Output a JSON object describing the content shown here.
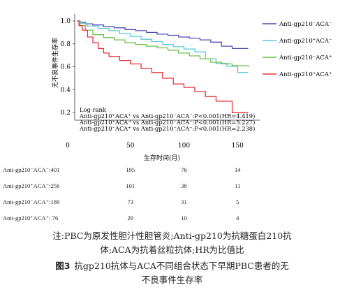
{
  "chart_data": {
    "type": "line",
    "ylabel": "无不良事件生存率",
    "xlabel": "生存时间(月)",
    "x_ticks": [
      0,
      50,
      100,
      150
    ],
    "y_ticks": [
      "0.2",
      "0.4",
      "0.6",
      "0.8",
      "1.0"
    ],
    "xlim": [
      0,
      165
    ],
    "ylim": [
      0.15,
      1.02
    ],
    "legend_position": "right",
    "series": [
      {
        "name": "Anti-gp210⁻ACA⁻",
        "color": "#4b4fb5",
        "points": [
          [
            0,
            1.0
          ],
          [
            3,
            0.99
          ],
          [
            8,
            0.975
          ],
          [
            15,
            0.965
          ],
          [
            25,
            0.95
          ],
          [
            35,
            0.94
          ],
          [
            45,
            0.925
          ],
          [
            55,
            0.915
          ],
          [
            65,
            0.9
          ],
          [
            75,
            0.885
          ],
          [
            85,
            0.875
          ],
          [
            95,
            0.86
          ],
          [
            105,
            0.85
          ],
          [
            115,
            0.835
          ],
          [
            125,
            0.815
          ],
          [
            135,
            0.78
          ],
          [
            145,
            0.76
          ],
          [
            160,
            0.76
          ]
        ]
      },
      {
        "name": "Anti-gp210⁺ACA⁻",
        "color": "#5bc8d8",
        "points": [
          [
            0,
            1.0
          ],
          [
            3,
            0.98
          ],
          [
            10,
            0.955
          ],
          [
            20,
            0.935
          ],
          [
            30,
            0.915
          ],
          [
            40,
            0.89
          ],
          [
            50,
            0.865
          ],
          [
            60,
            0.84
          ],
          [
            70,
            0.82
          ],
          [
            80,
            0.795
          ],
          [
            90,
            0.775
          ],
          [
            100,
            0.755
          ],
          [
            110,
            0.73
          ],
          [
            120,
            0.67
          ],
          [
            130,
            0.63
          ],
          [
            140,
            0.605
          ],
          [
            150,
            0.55
          ],
          [
            160,
            0.55
          ]
        ]
      },
      {
        "name": "Anti-gp210⁻ACA⁺",
        "color": "#6cc04a",
        "points": [
          [
            0,
            1.0
          ],
          [
            3,
            0.96
          ],
          [
            8,
            0.92
          ],
          [
            15,
            0.88
          ],
          [
            25,
            0.855
          ],
          [
            35,
            0.835
          ],
          [
            45,
            0.81
          ],
          [
            55,
            0.795
          ],
          [
            65,
            0.78
          ],
          [
            75,
            0.765
          ],
          [
            85,
            0.745
          ],
          [
            95,
            0.72
          ],
          [
            105,
            0.695
          ],
          [
            115,
            0.67
          ],
          [
            125,
            0.64
          ],
          [
            135,
            0.625
          ],
          [
            145,
            0.61
          ],
          [
            160,
            0.6
          ]
        ]
      },
      {
        "name": "Anti-gp210⁺ACA⁺",
        "color": "#e8333c",
        "points": [
          [
            0,
            1.0
          ],
          [
            2,
            0.96
          ],
          [
            5,
            0.92
          ],
          [
            10,
            0.86
          ],
          [
            15,
            0.81
          ],
          [
            20,
            0.76
          ],
          [
            25,
            0.72
          ],
          [
            30,
            0.69
          ],
          [
            40,
            0.655
          ],
          [
            50,
            0.625
          ],
          [
            60,
            0.585
          ],
          [
            70,
            0.55
          ],
          [
            80,
            0.5
          ],
          [
            90,
            0.45
          ],
          [
            100,
            0.42
          ],
          [
            110,
            0.385
          ],
          [
            120,
            0.34
          ],
          [
            130,
            0.3
          ],
          [
            140,
            0.3
          ],
          [
            145,
            0.2
          ],
          [
            160,
            0.2
          ]
        ]
      }
    ],
    "annotation": [
      "Log-rank",
      "Anti-gp210⁺ACA⁺ vs Anti-gp210⁻ACA⁻:P<0.001(HR=4.419)",
      "Anti-gp210⁺ACA⁻ vs Anti-gp210⁻ACA⁻:P<0.001(HR=3.227)",
      "Anti-gp210⁻ACA⁺ vs Anti-gp210⁻ACA⁻:P<0.001(HR=2.238)"
    ]
  },
  "risk_table": {
    "time_points": [
      0,
      50,
      100,
      150
    ],
    "rows": [
      {
        "label": "Anti-gp210⁻ACA⁻:",
        "values": [
          "401",
          "195",
          "76",
          "14"
        ]
      },
      {
        "label": "Anti-gp210⁺ACA⁻:",
        "values": [
          "256",
          "101",
          "38",
          "11"
        ]
      },
      {
        "label": "Anti-gp210⁻ACA⁺:",
        "values": [
          "189",
          "73",
          "31",
          "5"
        ]
      },
      {
        "label": "Anti-gp210⁺ACA⁺:",
        "values": [
          "76",
          "29",
          "10",
          "4"
        ]
      }
    ]
  },
  "notes": {
    "line1": "注:PBC为原发性胆汁性胆管炎;Anti-gp210为抗糖蛋白210抗",
    "line2": "体;ACA为抗着丝粒抗体;HR为比值比"
  },
  "caption": {
    "label": "图3",
    "line1": "抗gp210抗体与ACA不同组合状态下早期PBC患者的无",
    "line2": "不良事件生存率"
  }
}
